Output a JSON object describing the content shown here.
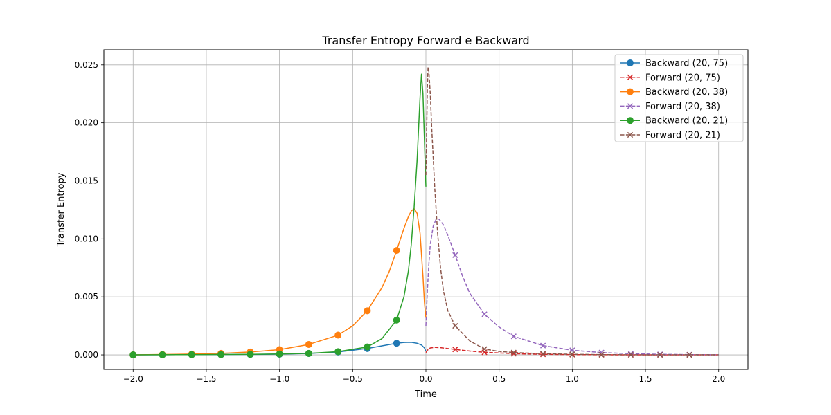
{
  "chart_data": {
    "type": "line",
    "title": "Transfer Entropy Forward e Backward",
    "xlabel": "Time",
    "ylabel": "Transfer Entropy",
    "xlim": [
      -2.2,
      2.2
    ],
    "ylim": [
      -0.00125,
      0.0263
    ],
    "xticks": [
      -2.0,
      -1.5,
      -1.0,
      -0.5,
      0.0,
      0.5,
      1.0,
      1.5,
      2.0
    ],
    "xtick_labels": [
      "−2.0",
      "−1.5",
      "−1.0",
      "−0.5",
      "0.0",
      "0.5",
      "1.0",
      "1.5",
      "2.0"
    ],
    "yticks": [
      0.0,
      0.005,
      0.01,
      0.015,
      0.02,
      0.025
    ],
    "ytick_labels": [
      "0.000",
      "0.005",
      "0.010",
      "0.015",
      "0.020",
      "0.025"
    ],
    "grid": true,
    "legend_position": "top-right",
    "series": [
      {
        "name": "Backward (20, 75)",
        "color": "#1f77b4",
        "linestyle": "solid",
        "marker": "circle",
        "x": [
          -2.0,
          -1.8,
          -1.6,
          -1.4,
          -1.2,
          -1.0,
          -0.8,
          -0.6,
          -0.4,
          -0.3,
          -0.2,
          -0.15,
          -0.1,
          -0.06,
          -0.03,
          -0.01,
          0.0
        ],
        "y": [
          0.0,
          1e-05,
          2e-05,
          3e-05,
          4e-05,
          6e-05,
          0.00012,
          0.00025,
          0.00055,
          0.00078,
          0.001,
          0.00107,
          0.00108,
          0.001,
          0.00085,
          0.0006,
          0.0003
        ],
        "marker_x": [
          -2.0,
          -1.8,
          -1.6,
          -1.4,
          -1.2,
          -1.0,
          -0.8,
          -0.6,
          -0.4,
          -0.2
        ],
        "marker_y": [
          0.0,
          1e-05,
          2e-05,
          3e-05,
          4e-05,
          6e-05,
          0.00012,
          0.00025,
          0.00055,
          0.001
        ]
      },
      {
        "name": "Forward (20, 75)",
        "color": "#d62728",
        "linestyle": "dashed",
        "marker": "x",
        "x": [
          0.0,
          0.01,
          0.03,
          0.06,
          0.1,
          0.15,
          0.2,
          0.3,
          0.4,
          0.6,
          0.8,
          1.0,
          1.2,
          1.4,
          1.6,
          1.8,
          2.0
        ],
        "y": [
          0.0002,
          0.0004,
          0.0006,
          0.00065,
          0.00062,
          0.00055,
          0.00047,
          0.00033,
          0.00022,
          0.0001,
          5e-05,
          2e-05,
          1e-05,
          0.0,
          0.0,
          0.0,
          0.0
        ],
        "marker_x": [
          0.2,
          0.4,
          0.6,
          0.8,
          1.0,
          1.2,
          1.4,
          1.6,
          1.8
        ],
        "marker_y": [
          0.00047,
          0.00022,
          0.0001,
          5e-05,
          2e-05,
          1e-05,
          0.0,
          0.0,
          0.0
        ]
      },
      {
        "name": "Backward (20, 38)",
        "color": "#ff7f0e",
        "linestyle": "solid",
        "marker": "circle",
        "x": [
          -2.0,
          -1.8,
          -1.6,
          -1.4,
          -1.2,
          -1.0,
          -0.8,
          -0.6,
          -0.5,
          -0.4,
          -0.3,
          -0.25,
          -0.2,
          -0.15,
          -0.12,
          -0.1,
          -0.08,
          -0.06,
          -0.04,
          -0.02,
          -0.01,
          0.0
        ],
        "y": [
          0.0,
          3e-05,
          7e-05,
          0.00013,
          0.00025,
          0.00045,
          0.0009,
          0.0017,
          0.0025,
          0.0038,
          0.0058,
          0.0072,
          0.009,
          0.0109,
          0.0119,
          0.0124,
          0.0126,
          0.0122,
          0.0105,
          0.0068,
          0.0045,
          0.0032
        ],
        "marker_x": [
          -2.0,
          -1.8,
          -1.6,
          -1.4,
          -1.2,
          -1.0,
          -0.8,
          -0.6,
          -0.4,
          -0.2
        ],
        "marker_y": [
          0.0,
          3e-05,
          7e-05,
          0.00013,
          0.00025,
          0.00045,
          0.0009,
          0.0017,
          0.0038,
          0.009
        ]
      },
      {
        "name": "Forward (20, 38)",
        "color": "#9467bd",
        "linestyle": "dashed",
        "marker": "x",
        "x": [
          0.0,
          0.01,
          0.02,
          0.03,
          0.05,
          0.07,
          0.09,
          0.12,
          0.15,
          0.2,
          0.25,
          0.3,
          0.4,
          0.5,
          0.6,
          0.8,
          1.0,
          1.2,
          1.4,
          1.6,
          1.8,
          2.0
        ],
        "y": [
          0.0025,
          0.0055,
          0.0078,
          0.0095,
          0.0111,
          0.0117,
          0.0117,
          0.0112,
          0.0103,
          0.0086,
          0.0068,
          0.0053,
          0.0035,
          0.0024,
          0.0016,
          0.0008,
          0.0004,
          0.0002,
          0.0001,
          5e-05,
          2e-05,
          1e-05
        ],
        "marker_x": [
          0.2,
          0.4,
          0.6,
          0.8,
          1.0,
          1.2,
          1.4,
          1.6,
          1.8
        ],
        "marker_y": [
          0.0086,
          0.0035,
          0.0016,
          0.0008,
          0.0004,
          0.0002,
          0.0001,
          5e-05,
          2e-05
        ]
      },
      {
        "name": "Backward (20, 21)",
        "color": "#2ca02c",
        "linestyle": "solid",
        "marker": "circle",
        "x": [
          -2.0,
          -1.8,
          -1.6,
          -1.4,
          -1.2,
          -1.0,
          -0.8,
          -0.6,
          -0.4,
          -0.3,
          -0.2,
          -0.15,
          -0.12,
          -0.1,
          -0.08,
          -0.06,
          -0.05,
          -0.04,
          -0.03,
          -0.02,
          -0.01,
          0.0
        ],
        "y": [
          0.0,
          1e-05,
          2e-05,
          3e-05,
          5e-05,
          8e-05,
          0.00013,
          0.00028,
          0.00068,
          0.0014,
          0.003,
          0.005,
          0.0072,
          0.0095,
          0.0128,
          0.0168,
          0.0195,
          0.0222,
          0.0242,
          0.0225,
          0.0185,
          0.0145
        ],
        "marker_x": [
          -2.0,
          -1.8,
          -1.6,
          -1.4,
          -1.2,
          -1.0,
          -0.8,
          -0.6,
          -0.4,
          -0.2
        ],
        "marker_y": [
          0.0,
          1e-05,
          2e-05,
          3e-05,
          5e-05,
          8e-05,
          0.00013,
          0.00028,
          0.00068,
          0.003
        ]
      },
      {
        "name": "Forward (20, 21)",
        "color": "#8c564b",
        "linestyle": "dashed",
        "marker": "x",
        "x": [
          0.0,
          0.005,
          0.01,
          0.015,
          0.02,
          0.03,
          0.04,
          0.06,
          0.08,
          0.1,
          0.12,
          0.15,
          0.2,
          0.3,
          0.4,
          0.5,
          0.6,
          0.8,
          1.0,
          1.2,
          1.4,
          1.6,
          1.8,
          2.0
        ],
        "y": [
          0.0155,
          0.019,
          0.023,
          0.0248,
          0.0245,
          0.0225,
          0.0195,
          0.0145,
          0.0105,
          0.0075,
          0.0055,
          0.0038,
          0.0025,
          0.0012,
          0.0005,
          0.0003,
          0.0002,
          0.0001,
          5e-05,
          2e-05,
          1e-05,
          0.0,
          0.0,
          0.0
        ],
        "marker_x": [
          0.2,
          0.4,
          0.6,
          0.8,
          1.0,
          1.2,
          1.4,
          1.6,
          1.8
        ],
        "marker_y": [
          0.0025,
          0.0005,
          0.0002,
          0.0001,
          5e-05,
          2e-05,
          1e-05,
          0.0,
          0.0
        ]
      }
    ]
  }
}
